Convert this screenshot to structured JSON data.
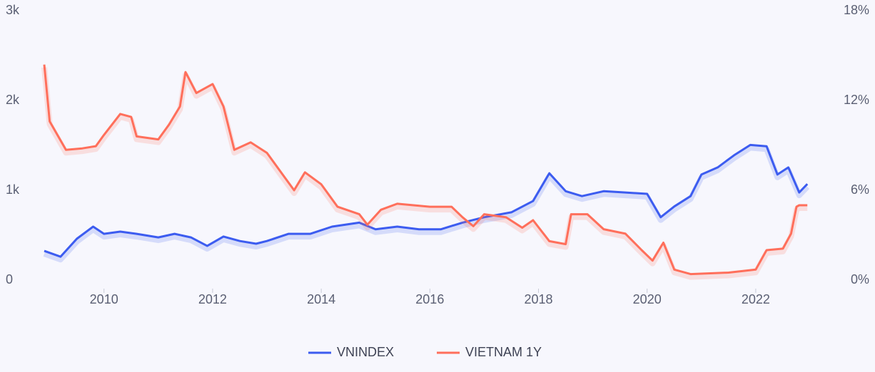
{
  "chart_data": {
    "type": "line",
    "xlim": [
      2008.9,
      2023.0
    ],
    "xticks": [
      2010,
      2012,
      2014,
      2016,
      2018,
      2020,
      2022
    ],
    "ylim": [
      0,
      3000
    ],
    "yticks": [
      {
        "value": 0,
        "label": "0"
      },
      {
        "value": 1000,
        "label": "1k"
      },
      {
        "value": 2000,
        "label": "2k"
      },
      {
        "value": 3000,
        "label": "3k"
      }
    ],
    "y2lim": [
      0,
      18
    ],
    "y2ticks": [
      {
        "value": 0,
        "label": "0%"
      },
      {
        "value": 6,
        "label": "6%"
      },
      {
        "value": 12,
        "label": "12%"
      },
      {
        "value": 18,
        "label": "18%"
      }
    ],
    "grid": false,
    "legend": "bottom",
    "series": [
      {
        "name": "VNINDEX",
        "color": "#3c5cf0",
        "x": [
          2008.9,
          2009.2,
          2009.5,
          2009.8,
          2010.0,
          2010.3,
          2010.6,
          2011.0,
          2011.3,
          2011.6,
          2011.9,
          2012.2,
          2012.5,
          2012.8,
          2013.0,
          2013.4,
          2013.8,
          2014.2,
          2014.7,
          2015.0,
          2015.4,
          2015.8,
          2016.2,
          2016.6,
          2017.0,
          2017.5,
          2017.9,
          2018.2,
          2018.5,
          2018.8,
          2019.2,
          2019.6,
          2020.0,
          2020.25,
          2020.5,
          2020.8,
          2021.0,
          2021.3,
          2021.6,
          2021.9,
          2022.2,
          2022.4,
          2022.6,
          2022.8,
          2022.95
        ],
        "values": [
          325,
          260,
          460,
          595,
          515,
          540,
          515,
          475,
          515,
          475,
          380,
          485,
          435,
          405,
          435,
          515,
          515,
          595,
          640,
          565,
          595,
          565,
          565,
          640,
          700,
          755,
          880,
          1190,
          990,
          935,
          990,
          975,
          960,
          700,
          820,
          935,
          1175,
          1255,
          1390,
          1505,
          1490,
          1175,
          1255,
          975,
          1070
        ]
      },
      {
        "name": "VIETNAM 1Y",
        "color": "#ff6f5b",
        "axis": "y2",
        "x": [
          2008.9,
          2009.0,
          2009.3,
          2009.6,
          2009.85,
          2010.0,
          2010.3,
          2010.5,
          2010.6,
          2011.0,
          2011.2,
          2011.4,
          2011.5,
          2011.7,
          2012.0,
          2012.2,
          2012.4,
          2012.7,
          2013.0,
          2013.3,
          2013.5,
          2013.7,
          2014.0,
          2014.3,
          2014.7,
          2014.85,
          2015.1,
          2015.4,
          2016.0,
          2016.4,
          2016.6,
          2016.8,
          2017.0,
          2017.4,
          2017.7,
          2017.9,
          2018.2,
          2018.5,
          2018.6,
          2018.9,
          2019.2,
          2019.6,
          2019.9,
          2020.1,
          2020.3,
          2020.5,
          2020.8,
          2021.5,
          2022.0,
          2022.2,
          2022.5,
          2022.65,
          2022.75,
          2022.8,
          2022.95
        ],
        "values": [
          14.4,
          10.6,
          8.7,
          8.8,
          8.95,
          9.7,
          11.1,
          10.9,
          9.6,
          9.4,
          10.4,
          11.6,
          13.9,
          12.5,
          13.1,
          11.6,
          8.7,
          9.2,
          8.5,
          7.0,
          6.0,
          7.2,
          6.4,
          4.9,
          4.4,
          3.7,
          4.7,
          5.1,
          4.9,
          4.9,
          4.2,
          3.6,
          4.4,
          4.2,
          3.5,
          4.0,
          2.6,
          2.4,
          4.4,
          4.4,
          3.4,
          3.1,
          2.0,
          1.3,
          2.5,
          0.7,
          0.4,
          0.5,
          0.7,
          2.0,
          2.1,
          3.1,
          4.9,
          5.0,
          5.0
        ]
      }
    ]
  }
}
